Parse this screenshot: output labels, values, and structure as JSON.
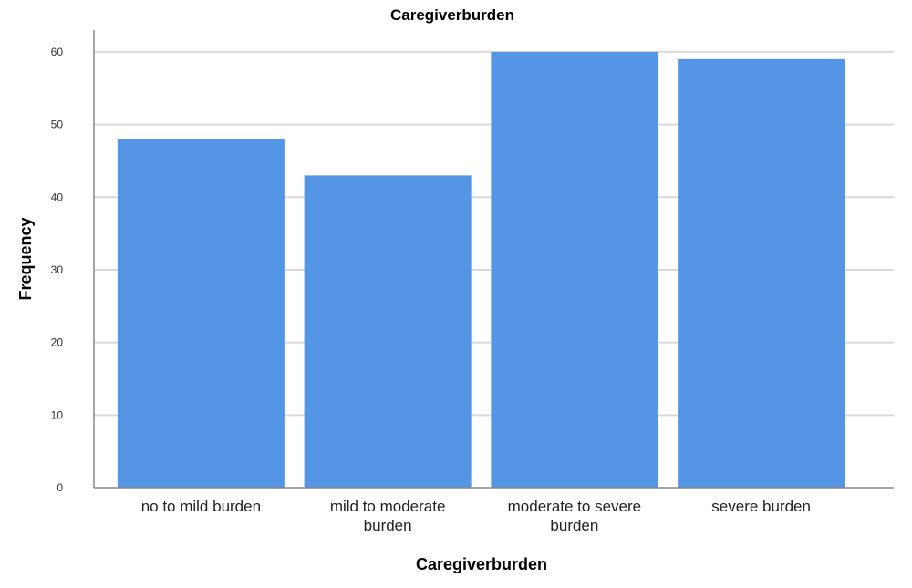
{
  "chart_data": {
    "type": "bar",
    "title": "Caregiverburden",
    "xlabel": "Caregiverburden",
    "ylabel": "Frequency",
    "categories": [
      "no to mild burden",
      "mild to moderate burden",
      "moderate to severe burden",
      "severe burden"
    ],
    "category_lines": [
      [
        "no to mild burden"
      ],
      [
        "mild to moderate",
        "burden"
      ],
      [
        "moderate to severe",
        "burden"
      ],
      [
        "severe burden"
      ]
    ],
    "values": [
      48,
      43,
      60,
      59
    ],
    "ylim": [
      0,
      63
    ],
    "yticks": [
      0,
      10,
      20,
      30,
      40,
      50,
      60
    ],
    "grid": true,
    "legend": "none"
  },
  "colors": {
    "bar": "#5595e5",
    "grid": "#d9d9d9",
    "axis": "#888888",
    "background": "#ffffff"
  }
}
